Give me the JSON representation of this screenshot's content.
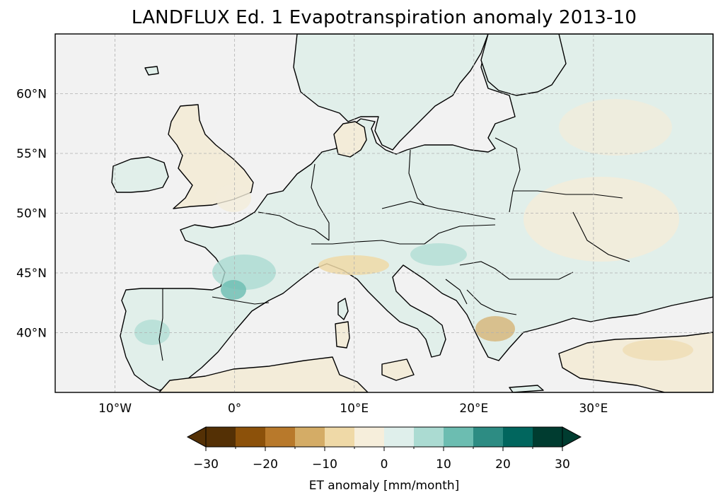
{
  "title": "LANDFLUX Ed. 1 Evapotranspiration anomaly 2013-10",
  "map": {
    "extent_lon": [
      -15,
      40
    ],
    "extent_lat": [
      35,
      65
    ],
    "lon_ticks": [
      {
        "value": -10,
        "label": "10°W"
      },
      {
        "value": 0,
        "label": "0°"
      },
      {
        "value": 10,
        "label": "10°E"
      },
      {
        "value": 20,
        "label": "20°E"
      },
      {
        "value": 30,
        "label": "30°E"
      }
    ],
    "lat_ticks": [
      {
        "value": 40,
        "label": "40°N"
      },
      {
        "value": 45,
        "label": "45°N"
      },
      {
        "value": 50,
        "label": "50°N"
      },
      {
        "value": 55,
        "label": "55°N"
      },
      {
        "value": 60,
        "label": "60°N"
      }
    ],
    "ocean_color": "#f2f2f2",
    "gridlines": true,
    "gridline_style": "dashed"
  },
  "colorbar": {
    "label": "ET anomaly [mm/month]",
    "min": -30,
    "max": 30,
    "step": 5,
    "extend": "both",
    "tick_values": [
      -30,
      -20,
      -10,
      0,
      10,
      20,
      30
    ],
    "tick_labels": [
      "−30",
      "−20",
      "−10",
      "0",
      "10",
      "20",
      "30"
    ],
    "colors": [
      "#543005",
      "#8c510a",
      "#b8792b",
      "#d4ac66",
      "#efd9a7",
      "#f6eedb",
      "#dfefeb",
      "#abdbd2",
      "#6cbdb1",
      "#2d8c83",
      "#01665e",
      "#003c30"
    ],
    "under_color": "#543005",
    "over_color": "#003c30"
  }
}
